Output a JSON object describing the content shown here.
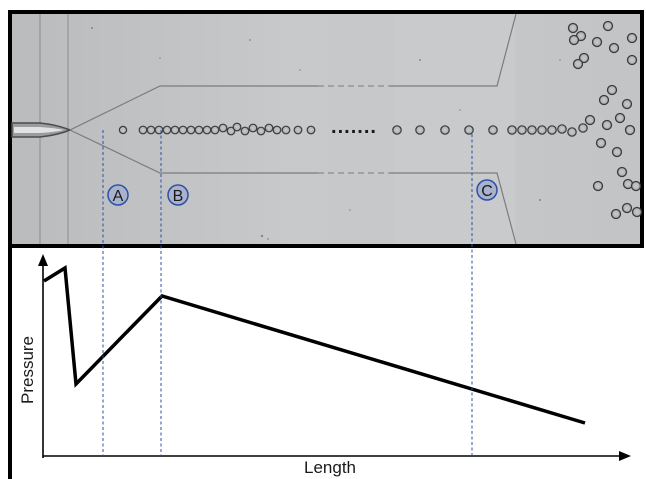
{
  "photo": {
    "markers": [
      {
        "label": "A"
      },
      {
        "label": "B"
      },
      {
        "label": "C"
      }
    ],
    "ellipsis": "......."
  },
  "plot": {
    "xlabel": "Length",
    "ylabel": "Pressure",
    "line_color": "#000000",
    "guide_color": "#2f4fa8"
  }
}
